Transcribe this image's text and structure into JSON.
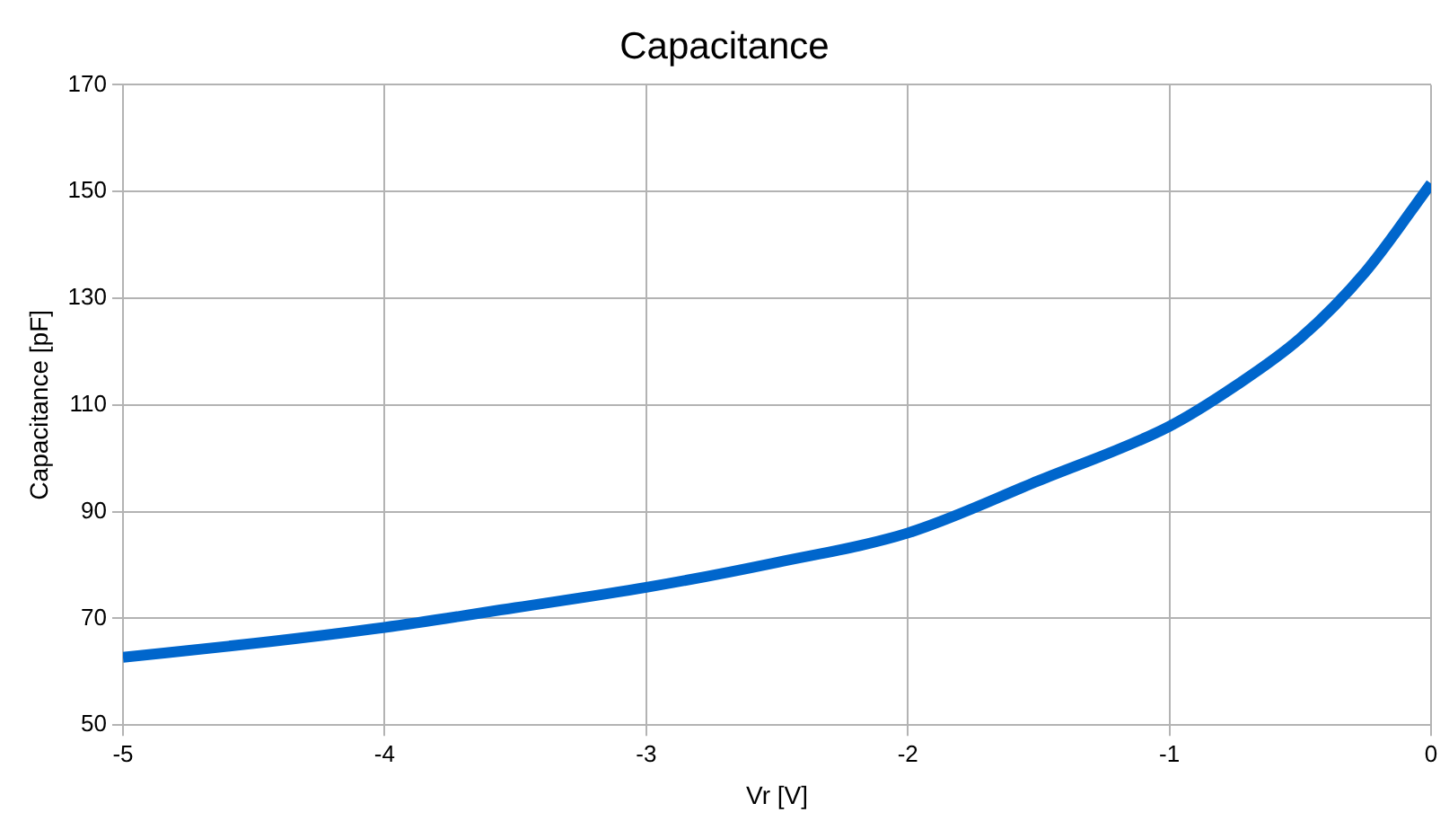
{
  "chart_data": {
    "type": "line",
    "title": "Capacitance",
    "xlabel": "Vr [V]",
    "ylabel": "Capacitance [pF]",
    "x": [
      -5,
      -4.5,
      -4,
      -3.5,
      -3,
      -2.5,
      -2,
      -1.5,
      -1,
      -0.75,
      -0.5,
      -0.25,
      0
    ],
    "series": [
      {
        "color": "#0066cc",
        "values": [
          62.7,
          65.3,
          68.3,
          72,
          75.8,
          80.5,
          86,
          95.8,
          106,
          113.5,
          122.5,
          135,
          151.5
        ]
      }
    ],
    "xlim": [
      -5,
      0
    ],
    "xticks": [
      -5,
      -4,
      -3,
      -2,
      -1,
      0
    ],
    "ylim": [
      50,
      170
    ],
    "yticks": [
      50,
      70,
      90,
      110,
      130,
      150,
      170
    ],
    "grid": true,
    "legend": false,
    "marker": "none",
    "line_style": "solid"
  }
}
